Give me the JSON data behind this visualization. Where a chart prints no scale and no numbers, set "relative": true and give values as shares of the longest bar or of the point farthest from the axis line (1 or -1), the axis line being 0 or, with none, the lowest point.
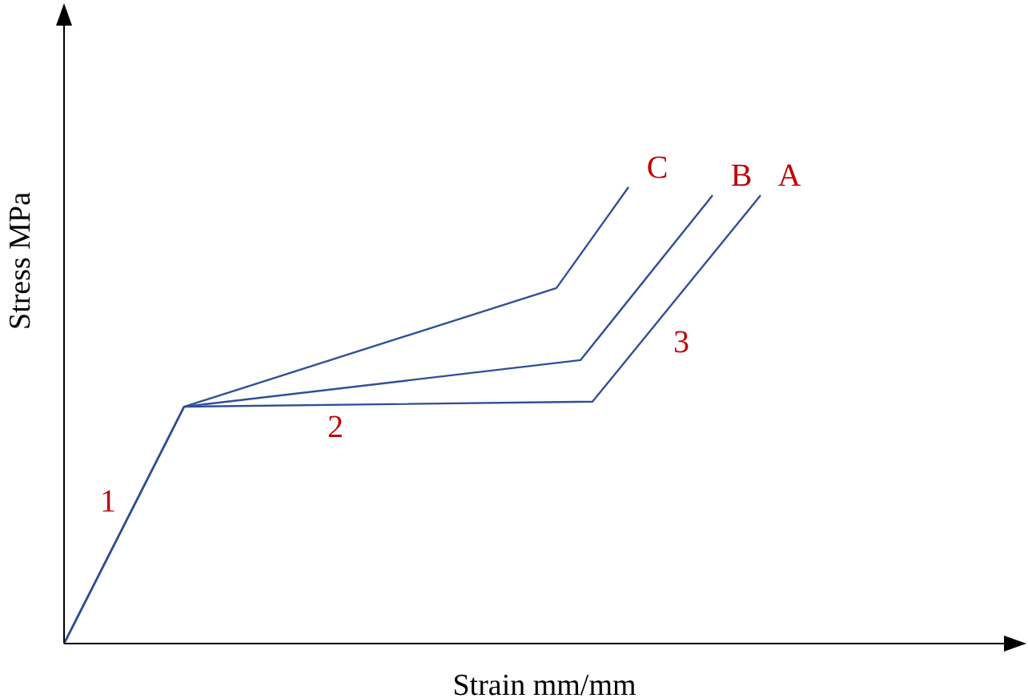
{
  "chart_data": {
    "type": "line",
    "relative": true,
    "xlabel": "Strain mm/mm",
    "ylabel": "Stress MPa",
    "legend": false,
    "grid": false,
    "marker": "none",
    "line_style": "solid",
    "categories": [
      null,
      null,
      null,
      null,
      null,
      null,
      null,
      null,
      null,
      null,
      null,
      null,
      null,
      null,
      null,
      null,
      null,
      null,
      null,
      null,
      null,
      null,
      null,
      null,
      null,
      null,
      null,
      null,
      null,
      null,
      null,
      null,
      null,
      null,
      null,
      null,
      null,
      null,
      null,
      null,
      null,
      null,
      null,
      null,
      null,
      null,
      null,
      null,
      null,
      null,
      null,
      null,
      null,
      null,
      null,
      null,
      null,
      null,
      null,
      null,
      null,
      null,
      null,
      null,
      null,
      null,
      null,
      null,
      null,
      null,
      null,
      null,
      null,
      null,
      null,
      null,
      null,
      null,
      null,
      null,
      null
    ],
    "series": [
      {
        "name": "A",
        "color": "#2f4f96",
        "values": [
          0,
          null,
          null,
          null,
          null,
          null,
          null,
          null,
          null,
          null,
          0.519,
          null,
          null,
          null,
          null,
          null,
          null,
          null,
          null,
          null,
          null,
          null,
          null,
          null,
          null,
          null,
          null,
          null,
          null,
          null,
          null,
          null,
          null,
          null,
          null,
          null,
          null,
          null,
          null,
          null,
          null,
          null,
          null,
          null,
          0.53,
          null,
          null,
          null,
          null,
          null,
          null,
          null,
          null,
          null,
          null,
          null,
          null,
          null,
          0.982,
          null,
          null,
          null,
          null,
          null,
          null,
          null,
          null,
          null,
          null,
          null,
          null,
          null,
          null,
          null,
          null,
          null,
          null,
          null,
          null,
          null,
          null
        ]
      },
      {
        "name": "B",
        "color": "#2f4f96",
        "values": [
          0,
          null,
          null,
          null,
          null,
          null,
          null,
          null,
          null,
          null,
          0.519,
          null,
          null,
          null,
          null,
          null,
          null,
          null,
          null,
          null,
          null,
          null,
          null,
          null,
          null,
          null,
          null,
          null,
          null,
          null,
          null,
          null,
          null,
          null,
          null,
          null,
          null,
          null,
          null,
          null,
          null,
          null,
          null,
          0.621,
          null,
          null,
          null,
          null,
          null,
          null,
          null,
          null,
          null,
          null,
          0.982,
          null,
          null,
          null,
          null,
          null,
          null,
          null,
          null,
          null,
          null,
          null,
          null,
          null,
          null,
          null,
          null,
          null,
          null,
          null,
          null,
          null,
          null,
          null,
          null,
          null,
          null
        ]
      },
      {
        "name": "C",
        "color": "#2f4f96",
        "values": [
          0,
          null,
          null,
          null,
          null,
          null,
          null,
          null,
          null,
          null,
          0.519,
          null,
          null,
          null,
          null,
          null,
          null,
          null,
          null,
          null,
          null,
          null,
          null,
          null,
          null,
          null,
          null,
          null,
          null,
          null,
          null,
          null,
          null,
          null,
          null,
          null,
          null,
          null,
          null,
          null,
          null,
          0.779,
          null,
          null,
          null,
          null,
          null,
          1.0,
          null,
          null,
          null,
          null,
          null,
          null,
          null,
          null,
          null,
          null,
          null,
          null,
          null,
          null,
          null,
          null,
          null,
          null,
          null,
          null,
          null,
          null,
          null,
          null,
          null,
          null,
          null,
          null,
          null,
          null,
          null,
          null,
          null
        ]
      }
    ],
    "annotations": [
      "1",
      "2",
      "3"
    ]
  }
}
